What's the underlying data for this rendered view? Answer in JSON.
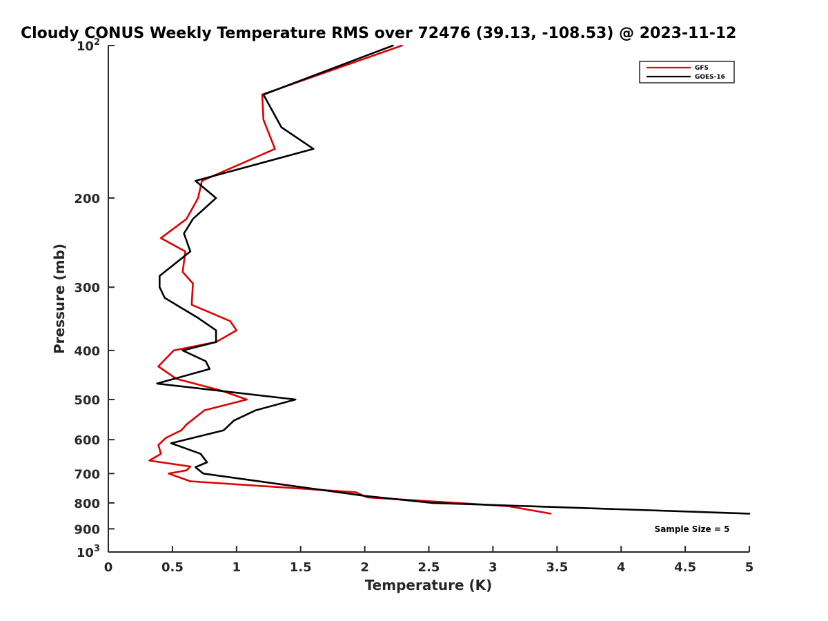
{
  "chart_data": {
    "type": "line",
    "title": "Cloudy CONUS Weekly Temperature RMS over 72476 (39.13, -108.53) @ 2023-11-12",
    "xlabel": "Temperature (K)",
    "ylabel": "Pressure (mb)",
    "xlim": [
      0,
      5
    ],
    "ylim": [
      100,
      1000
    ],
    "y_scale": "log",
    "y_reversed": true,
    "grid": false,
    "legend_position": "top-right",
    "x_ticks": [
      "0",
      "0.5",
      "1",
      "1.5",
      "2",
      "2.5",
      "3",
      "3.5",
      "4",
      "4.5",
      "5"
    ],
    "y_ticks": [
      {
        "base": "10",
        "exp": "2",
        "value": 100
      },
      {
        "label": "200",
        "value": 200
      },
      {
        "label": "300",
        "value": 300
      },
      {
        "label": "400",
        "value": 400
      },
      {
        "label": "500",
        "value": 500
      },
      {
        "label": "600",
        "value": 600
      },
      {
        "label": "700",
        "value": 700
      },
      {
        "label": "800",
        "value": 800
      },
      {
        "label": "900",
        "value": 900
      },
      {
        "base": "10",
        "exp": "3",
        "value": 1000
      }
    ],
    "annotation": "Sample Size = 5",
    "series": [
      {
        "name": "GFS",
        "color": "#e00000",
        "points": [
          [
            2.29,
            100
          ],
          [
            1.2,
            125
          ],
          [
            1.21,
            140
          ],
          [
            1.3,
            160
          ],
          [
            0.73,
            185
          ],
          [
            0.7,
            200
          ],
          [
            0.61,
            220
          ],
          [
            0.41,
            240
          ],
          [
            0.6,
            255
          ],
          [
            0.58,
            280
          ],
          [
            0.66,
            295
          ],
          [
            0.65,
            325
          ],
          [
            0.95,
            350
          ],
          [
            1.0,
            365
          ],
          [
            0.84,
            385
          ],
          [
            0.51,
            400
          ],
          [
            0.39,
            430
          ],
          [
            0.53,
            455
          ],
          [
            0.88,
            480
          ],
          [
            1.08,
            500
          ],
          [
            0.75,
            525
          ],
          [
            0.61,
            560
          ],
          [
            0.57,
            575
          ],
          [
            0.45,
            595
          ],
          [
            0.39,
            615
          ],
          [
            0.41,
            640
          ],
          [
            0.32,
            660
          ],
          [
            0.64,
            678
          ],
          [
            0.61,
            690
          ],
          [
            0.47,
            700
          ],
          [
            0.64,
            725
          ],
          [
            1.93,
            762
          ],
          [
            2.02,
            780
          ],
          [
            3.12,
            812
          ],
          [
            3.45,
            840
          ]
        ]
      },
      {
        "name": "GOES-16",
        "color": "#000000",
        "points": [
          [
            2.22,
            100
          ],
          [
            1.21,
            125
          ],
          [
            1.35,
            145
          ],
          [
            1.6,
            160
          ],
          [
            0.68,
            185
          ],
          [
            0.84,
            200
          ],
          [
            0.66,
            220
          ],
          [
            0.59,
            235
          ],
          [
            0.64,
            255
          ],
          [
            0.4,
            285
          ],
          [
            0.4,
            300
          ],
          [
            0.44,
            315
          ],
          [
            0.7,
            345
          ],
          [
            0.84,
            365
          ],
          [
            0.84,
            385
          ],
          [
            0.58,
            400
          ],
          [
            0.76,
            420
          ],
          [
            0.79,
            435
          ],
          [
            0.38,
            465
          ],
          [
            1.46,
            500
          ],
          [
            1.15,
            525
          ],
          [
            0.98,
            550
          ],
          [
            0.9,
            575
          ],
          [
            0.49,
            610
          ],
          [
            0.72,
            640
          ],
          [
            0.74,
            650
          ],
          [
            0.77,
            665
          ],
          [
            0.68,
            680
          ],
          [
            0.74,
            700
          ],
          [
            2.0,
            775
          ],
          [
            2.53,
            800
          ],
          [
            5.0,
            840
          ]
        ]
      }
    ]
  }
}
